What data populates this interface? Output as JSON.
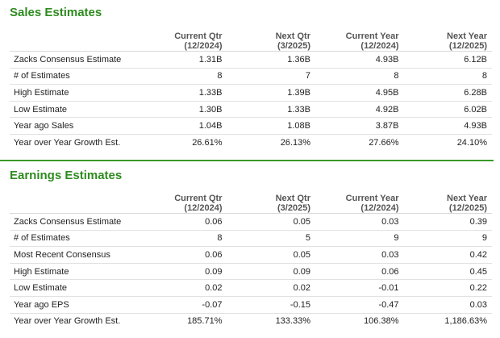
{
  "sales": {
    "title": "Sales Estimates",
    "columns": [
      {
        "line1": "Current Qtr",
        "line2": "(12/2024)"
      },
      {
        "line1": "Next Qtr",
        "line2": "(3/2025)"
      },
      {
        "line1": "Current Year",
        "line2": "(12/2024)"
      },
      {
        "line1": "Next Year",
        "line2": "(12/2025)"
      }
    ],
    "rows": [
      {
        "label": "Zacks Consensus Estimate",
        "values": [
          "1.31B",
          "1.36B",
          "4.93B",
          "6.12B"
        ]
      },
      {
        "label": "# of Estimates",
        "values": [
          "8",
          "7",
          "8",
          "8"
        ]
      },
      {
        "label": "High Estimate",
        "values": [
          "1.33B",
          "1.39B",
          "4.95B",
          "6.28B"
        ]
      },
      {
        "label": "Low Estimate",
        "values": [
          "1.30B",
          "1.33B",
          "4.92B",
          "6.02B"
        ]
      },
      {
        "label": "Year ago Sales",
        "values": [
          "1.04B",
          "1.08B",
          "3.87B",
          "4.93B"
        ]
      },
      {
        "label": "Year over Year Growth Est.",
        "values": [
          "26.61%",
          "26.13%",
          "27.66%",
          "24.10%"
        ]
      }
    ]
  },
  "earnings": {
    "title": "Earnings Estimates",
    "columns": [
      {
        "line1": "Current Qtr",
        "line2": "(12/2024)"
      },
      {
        "line1": "Next Qtr",
        "line2": "(3/2025)"
      },
      {
        "line1": "Current Year",
        "line2": "(12/2024)"
      },
      {
        "line1": "Next Year",
        "line2": "(12/2025)"
      }
    ],
    "rows": [
      {
        "label": "Zacks Consensus Estimate",
        "values": [
          "0.06",
          "0.05",
          "0.03",
          "0.39"
        ]
      },
      {
        "label": "# of Estimates",
        "values": [
          "8",
          "5",
          "9",
          "9"
        ]
      },
      {
        "label": "Most Recent Consensus",
        "values": [
          "0.06",
          "0.05",
          "0.03",
          "0.42"
        ]
      },
      {
        "label": "High Estimate",
        "values": [
          "0.09",
          "0.09",
          "0.06",
          "0.45"
        ]
      },
      {
        "label": "Low Estimate",
        "values": [
          "0.02",
          "0.02",
          "-0.01",
          "0.22"
        ]
      },
      {
        "label": "Year ago EPS",
        "values": [
          "-0.07",
          "-0.15",
          "-0.47",
          "0.03"
        ]
      },
      {
        "label": "Year over Year Growth Est.",
        "values": [
          "185.71%",
          "133.33%",
          "106.38%",
          "1,186.63%"
        ]
      }
    ]
  },
  "colors": {
    "heading": "#2e8b1f",
    "divider": "#3a9a2a"
  }
}
